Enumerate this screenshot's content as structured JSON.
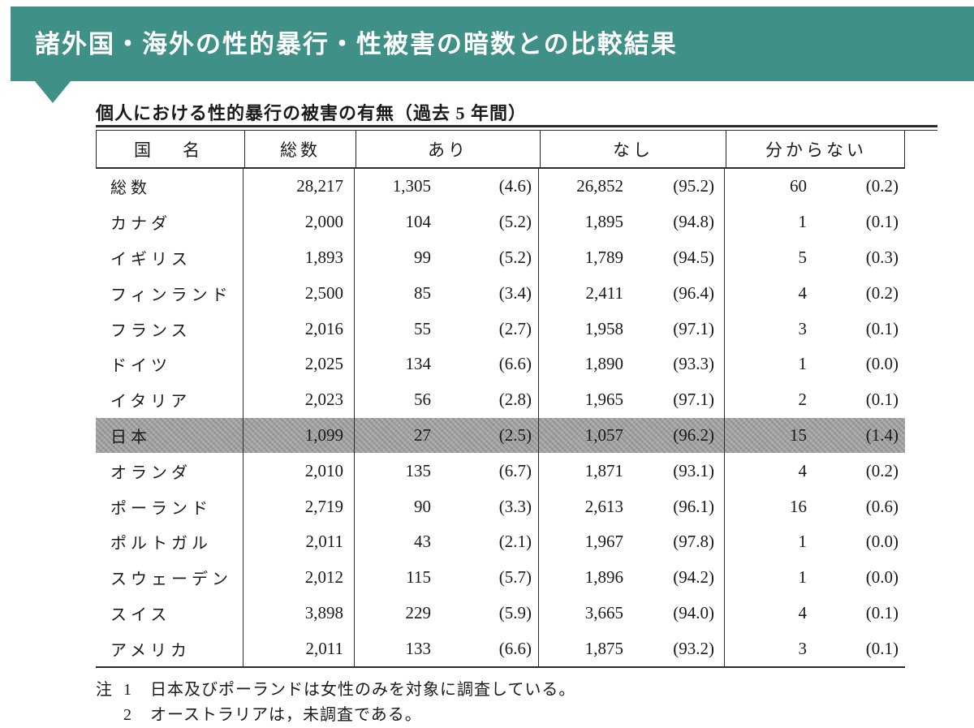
{
  "banner": {
    "title": "諸外国・海外の性的暴行・性被害の暗数との比較結果"
  },
  "colors": {
    "banner_bg": "#3F9187",
    "highlight_row": "#A6A6A6",
    "text": "#1A1A1A"
  },
  "table": {
    "title": "個人における性的暴行の被害の有無（過去 5 年間）",
    "headers": {
      "country": "国　名",
      "total": "総数",
      "ari": "あり",
      "nashi": "なし",
      "wakaranai": "分からない"
    },
    "rows": [
      {
        "country": "総数",
        "total": "28,217",
        "ari_n": "1,305",
        "ari_p": "(4.6)",
        "nashi_n": "26,852",
        "nashi_p": "(95.2)",
        "wak_n": "60",
        "wak_p": "(0.2)",
        "highlight": false
      },
      {
        "country": "カナダ",
        "total": "2,000",
        "ari_n": "104",
        "ari_p": "(5.2)",
        "nashi_n": "1,895",
        "nashi_p": "(94.8)",
        "wak_n": "1",
        "wak_p": "(0.1)",
        "highlight": false
      },
      {
        "country": "イギリス",
        "total": "1,893",
        "ari_n": "99",
        "ari_p": "(5.2)",
        "nashi_n": "1,789",
        "nashi_p": "(94.5)",
        "wak_n": "5",
        "wak_p": "(0.3)",
        "highlight": false
      },
      {
        "country": "フィンランド",
        "total": "2,500",
        "ari_n": "85",
        "ari_p": "(3.4)",
        "nashi_n": "2,411",
        "nashi_p": "(96.4)",
        "wak_n": "4",
        "wak_p": "(0.2)",
        "highlight": false
      },
      {
        "country": "フランス",
        "total": "2,016",
        "ari_n": "55",
        "ari_p": "(2.7)",
        "nashi_n": "1,958",
        "nashi_p": "(97.1)",
        "wak_n": "3",
        "wak_p": "(0.1)",
        "highlight": false
      },
      {
        "country": "ドイツ",
        "total": "2,025",
        "ari_n": "134",
        "ari_p": "(6.6)",
        "nashi_n": "1,890",
        "nashi_p": "(93.3)",
        "wak_n": "1",
        "wak_p": "(0.0)",
        "highlight": false
      },
      {
        "country": "イタリア",
        "total": "2,023",
        "ari_n": "56",
        "ari_p": "(2.8)",
        "nashi_n": "1,965",
        "nashi_p": "(97.1)",
        "wak_n": "2",
        "wak_p": "(0.1)",
        "highlight": false
      },
      {
        "country": "日本",
        "total": "1,099",
        "ari_n": "27",
        "ari_p": "(2.5)",
        "nashi_n": "1,057",
        "nashi_p": "(96.2)",
        "wak_n": "15",
        "wak_p": "(1.4)",
        "highlight": true
      },
      {
        "country": "オランダ",
        "total": "2,010",
        "ari_n": "135",
        "ari_p": "(6.7)",
        "nashi_n": "1,871",
        "nashi_p": "(93.1)",
        "wak_n": "4",
        "wak_p": "(0.2)",
        "highlight": false
      },
      {
        "country": "ポーランド",
        "total": "2,719",
        "ari_n": "90",
        "ari_p": "(3.3)",
        "nashi_n": "2,613",
        "nashi_p": "(96.1)",
        "wak_n": "16",
        "wak_p": "(0.6)",
        "highlight": false
      },
      {
        "country": "ポルトガル",
        "total": "2,011",
        "ari_n": "43",
        "ari_p": "(2.1)",
        "nashi_n": "1,967",
        "nashi_p": "(97.8)",
        "wak_n": "1",
        "wak_p": "(0.0)",
        "highlight": false
      },
      {
        "country": "スウェーデン",
        "total": "2,012",
        "ari_n": "115",
        "ari_p": "(5.7)",
        "nashi_n": "1,896",
        "nashi_p": "(94.2)",
        "wak_n": "1",
        "wak_p": "(0.0)",
        "highlight": false
      },
      {
        "country": "スイス",
        "total": "3,898",
        "ari_n": "229",
        "ari_p": "(5.9)",
        "nashi_n": "3,665",
        "nashi_p": "(94.0)",
        "wak_n": "4",
        "wak_p": "(0.1)",
        "highlight": false
      },
      {
        "country": "アメリカ",
        "total": "2,011",
        "ari_n": "133",
        "ari_p": "(6.6)",
        "nashi_n": "1,875",
        "nashi_p": "(93.2)",
        "wak_n": "3",
        "wak_p": "(0.1)",
        "highlight": false
      }
    ],
    "notes": [
      {
        "marker": "注",
        "number": "1",
        "text": "日本及びポーランドは女性のみを対象に調査している。"
      },
      {
        "marker": "",
        "number": "2",
        "text": "オーストラリアは，未調査である。"
      }
    ]
  }
}
